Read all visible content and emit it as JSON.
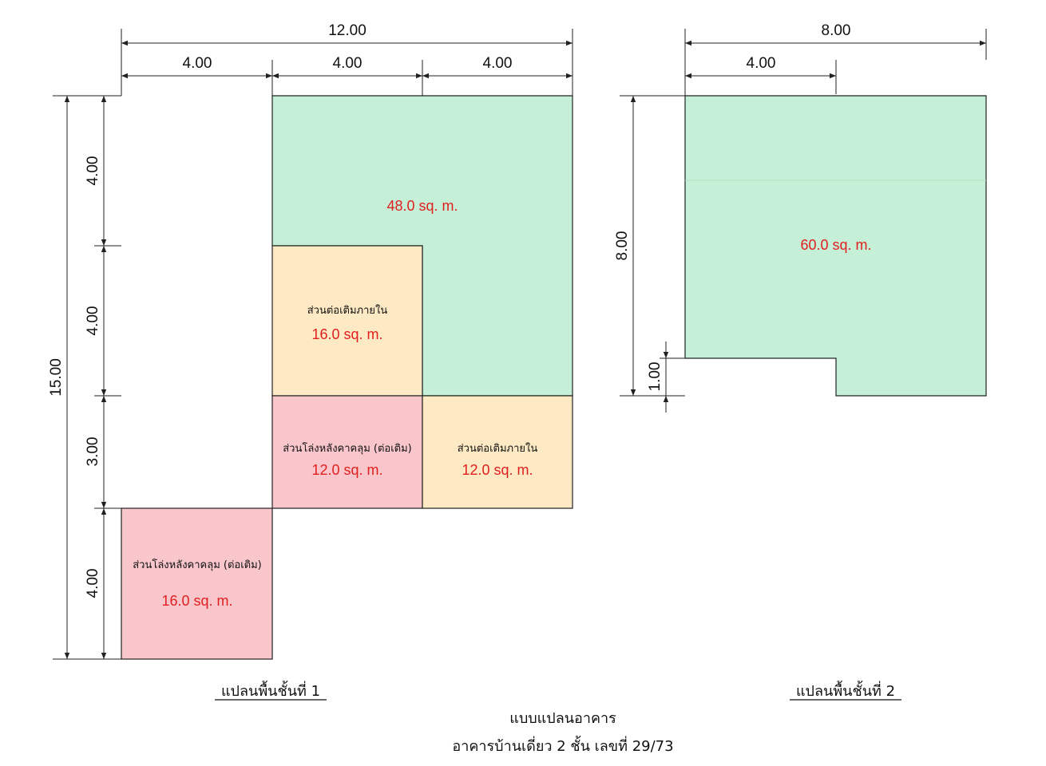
{
  "colors": {
    "green": "#c6efd8",
    "yellow": "#fde9c3",
    "pink": "#f9c6cc",
    "area_text": "#e0201f",
    "line": "#222222"
  },
  "plan1": {
    "title": "แปลนพื้นชั้นที่ 1",
    "dims": {
      "total_width": "12.00",
      "seg1": "4.00",
      "seg2": "4.00",
      "seg3": "4.00",
      "total_height": "15.00",
      "h1": "4.00",
      "h2": "4.00",
      "h3": "3.00",
      "h4": "4.00"
    },
    "rooms": {
      "main_area": "48.0 sq. m.",
      "inner_ext_1_label": "ส่วนต่อเติมภายใน",
      "inner_ext_1_area": "16.0 sq. m.",
      "covered_1_label": "ส่วนโล่งหลังคาคลุม (ต่อเติม)",
      "covered_1_area": "12.0 sq. m.",
      "inner_ext_2_label": "ส่วนต่อเติมภายใน",
      "inner_ext_2_area": "12.0 sq. m.",
      "covered_2_label": "ส่วนโล่งหลังคาคลุม (ต่อเติม)",
      "covered_2_area": "16.0 sq. m."
    }
  },
  "plan2": {
    "title": "แปลนพื้นชั้นที่ 2",
    "dims": {
      "total_width": "8.00",
      "seg1": "4.00",
      "height": "8.00",
      "step": "1.00"
    },
    "rooms": {
      "main_area": "60.0 sq. m."
    }
  },
  "footer": {
    "line1": "แบบแปลนอาคาร",
    "line2": "อาคารบ้านเดี่ยว 2 ชั้น เลขที่ 29/73"
  }
}
